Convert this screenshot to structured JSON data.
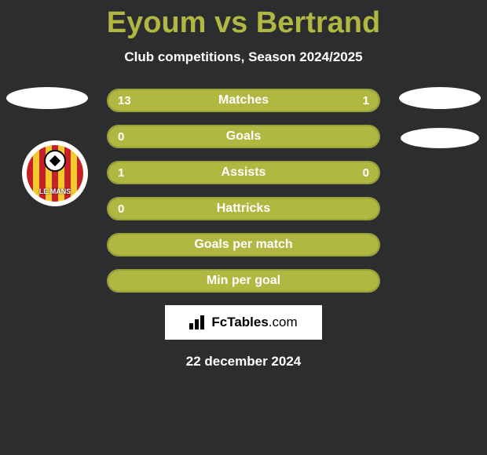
{
  "title": "Eyoum vs Bertrand",
  "subtitle": "Club competitions, Season 2024/2025",
  "colors": {
    "background": "#2c2d2f",
    "accent": "#b0b841",
    "bar_border": "#9aa03a",
    "text_primary": "#ffffff",
    "title_color": "#b0b841"
  },
  "club_logo": {
    "label": "LE MANS",
    "stripe_colors": [
      "#c52228",
      "#f2c92e"
    ]
  },
  "bars": [
    {
      "label": "Matches",
      "left_value": "13",
      "right_value": "1",
      "left_pct": 85,
      "right_pct": 15
    },
    {
      "label": "Goals",
      "left_value": "0",
      "right_value": "",
      "left_pct": 100,
      "right_pct": 0
    },
    {
      "label": "Assists",
      "left_value": "1",
      "right_value": "0",
      "left_pct": 78,
      "right_pct": 22
    },
    {
      "label": "Hattricks",
      "left_value": "0",
      "right_value": "",
      "left_pct": 100,
      "right_pct": 0
    },
    {
      "label": "Goals per match",
      "left_value": "",
      "right_value": "",
      "left_pct": 100,
      "right_pct": 0
    },
    {
      "label": "Min per goal",
      "left_value": "",
      "right_value": "",
      "left_pct": 100,
      "right_pct": 0
    }
  ],
  "footer": {
    "brand_prefix": "Fc",
    "brand_main": "Tables",
    "brand_suffix": ".com"
  },
  "date": "22 december 2024"
}
